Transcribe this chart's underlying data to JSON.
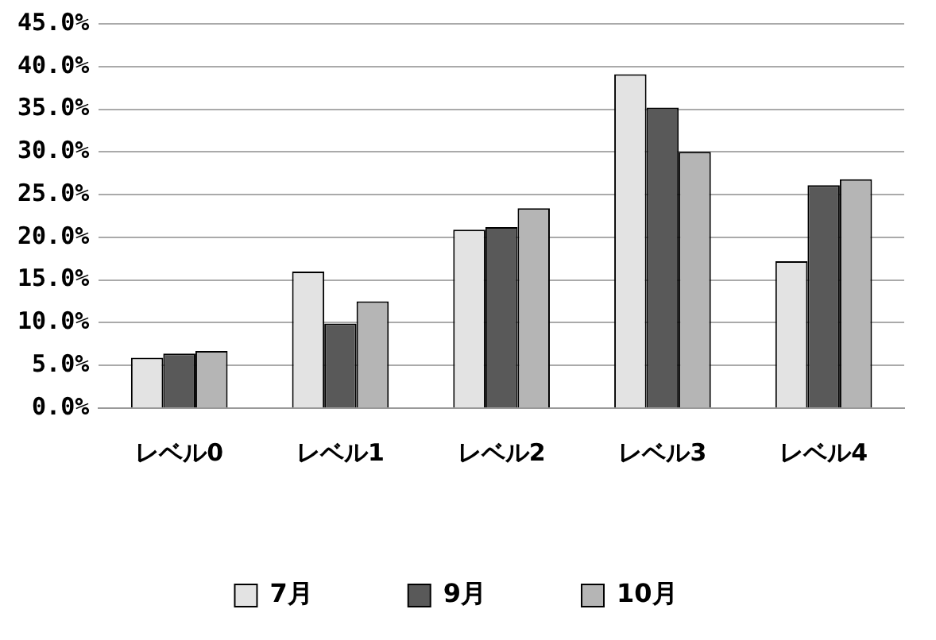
{
  "chart_data": {
    "type": "bar",
    "categories": [
      "レベル0",
      "レベル1",
      "レベル2",
      "レベル3",
      "レベル4"
    ],
    "series": [
      {
        "name": "7月",
        "color": "#e3e3e3",
        "values": [
          5.9,
          16.0,
          20.9,
          39.1,
          17.2
        ]
      },
      {
        "name": "9月",
        "color": "#595959",
        "values": [
          6.4,
          9.9,
          21.2,
          35.2,
          26.1
        ]
      },
      {
        "name": "10月",
        "color": "#b5b5b5",
        "values": [
          6.7,
          12.5,
          23.4,
          30.0,
          26.8
        ]
      }
    ],
    "ylim": [
      0,
      45
    ],
    "yticks": [
      {
        "value": 0,
        "label": "0.0%"
      },
      {
        "value": 5,
        "label": "5.0%"
      },
      {
        "value": 10,
        "label": "10.0%"
      },
      {
        "value": 15,
        "label": "15.0%"
      },
      {
        "value": 20,
        "label": "20.0%"
      },
      {
        "value": 25,
        "label": "25.0%"
      },
      {
        "value": 30,
        "label": "30.0%"
      },
      {
        "value": 35,
        "label": "35.0%"
      },
      {
        "value": 40,
        "label": "40.0%"
      },
      {
        "value": 45,
        "label": "45.0%"
      }
    ],
    "grid": "y",
    "legend": "bottom"
  }
}
